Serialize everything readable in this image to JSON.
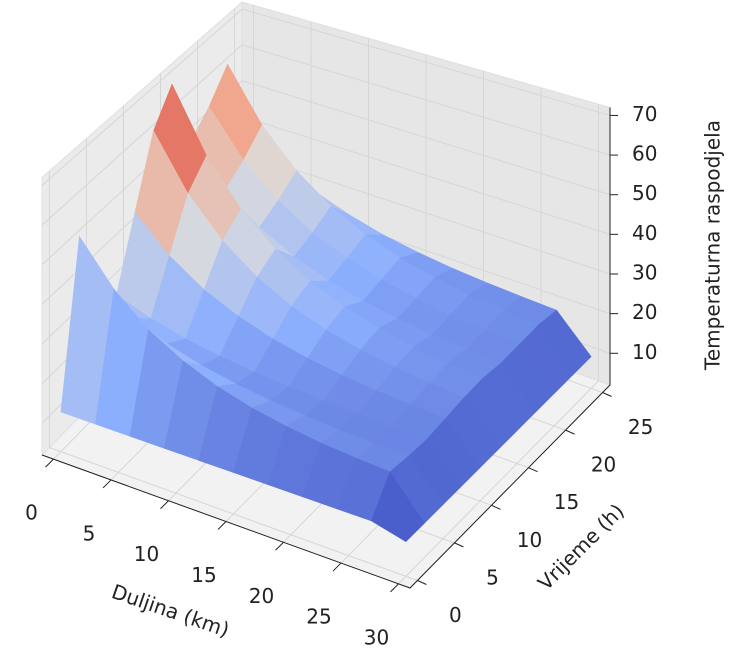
{
  "chart_data": {
    "type": "surface3d",
    "xlabel": "Duljina (km)",
    "ylabel": "Vrijeme (h)",
    "zlabel": "Temperaturna raspodjela",
    "colormap": "coolwarm",
    "x": [
      0,
      3,
      6,
      9,
      12,
      15,
      18,
      21,
      24,
      27,
      30
    ],
    "y": [
      0,
      2.5,
      5,
      7.5,
      10,
      12.5,
      15,
      17.5,
      20,
      22.5,
      25
    ],
    "z": [
      [
        12,
        12,
        12,
        12,
        12,
        12,
        12,
        12,
        12,
        12,
        10
      ],
      [
        52,
        41.4,
        34.0,
        29.1,
        25.6,
        23.2,
        21.6,
        20.4,
        19.7,
        19.2,
        10
      ],
      [
        35,
        29.7,
        26.0,
        23.5,
        21.8,
        20.6,
        19.8,
        19.2,
        18.9,
        18.6,
        10
      ],
      [
        28,
        24.9,
        22.7,
        21.3,
        20.2,
        19.5,
        19.1,
        18.7,
        18.5,
        18.3,
        10
      ],
      [
        45,
        36.5,
        30.7,
        26.8,
        24.0,
        22.1,
        20.8,
        19.9,
        19.4,
        18.9,
        10
      ],
      [
        62,
        48.2,
        38.8,
        32.3,
        27.8,
        24.7,
        22.6,
        21.2,
        20.2,
        19.5,
        10
      ],
      [
        70,
        53.7,
        42.5,
        34.9,
        29.6,
        26.0,
        23.5,
        21.7,
        20.6,
        19.8,
        10
      ],
      [
        50,
        40.0,
        33.1,
        28.4,
        25.1,
        22.9,
        21.4,
        20.3,
        19.6,
        19.1,
        10
      ],
      [
        55,
        43.4,
        35.5,
        30.0,
        26.3,
        23.7,
        21.9,
        20.7,
        19.9,
        19.3,
        10
      ],
      [
        62,
        48.2,
        38.8,
        32.3,
        27.8,
        24.7,
        22.6,
        21.2,
        20.2,
        19.5,
        10
      ],
      [
        40,
        33.1,
        28.4,
        25.2,
        22.9,
        21.4,
        20.3,
        19.6,
        19.1,
        18.7,
        10
      ]
    ],
    "xlim": [
      -1,
      31
    ],
    "ylim": [
      -1,
      26
    ],
    "zlim": [
      2,
      72
    ],
    "xticks": [
      0,
      5,
      10,
      15,
      20,
      25,
      30
    ],
    "yticks": [
      0,
      5,
      10,
      15,
      20,
      25
    ],
    "zticks": [
      10,
      20,
      30,
      40,
      50,
      60,
      70
    ],
    "grid": true
  }
}
